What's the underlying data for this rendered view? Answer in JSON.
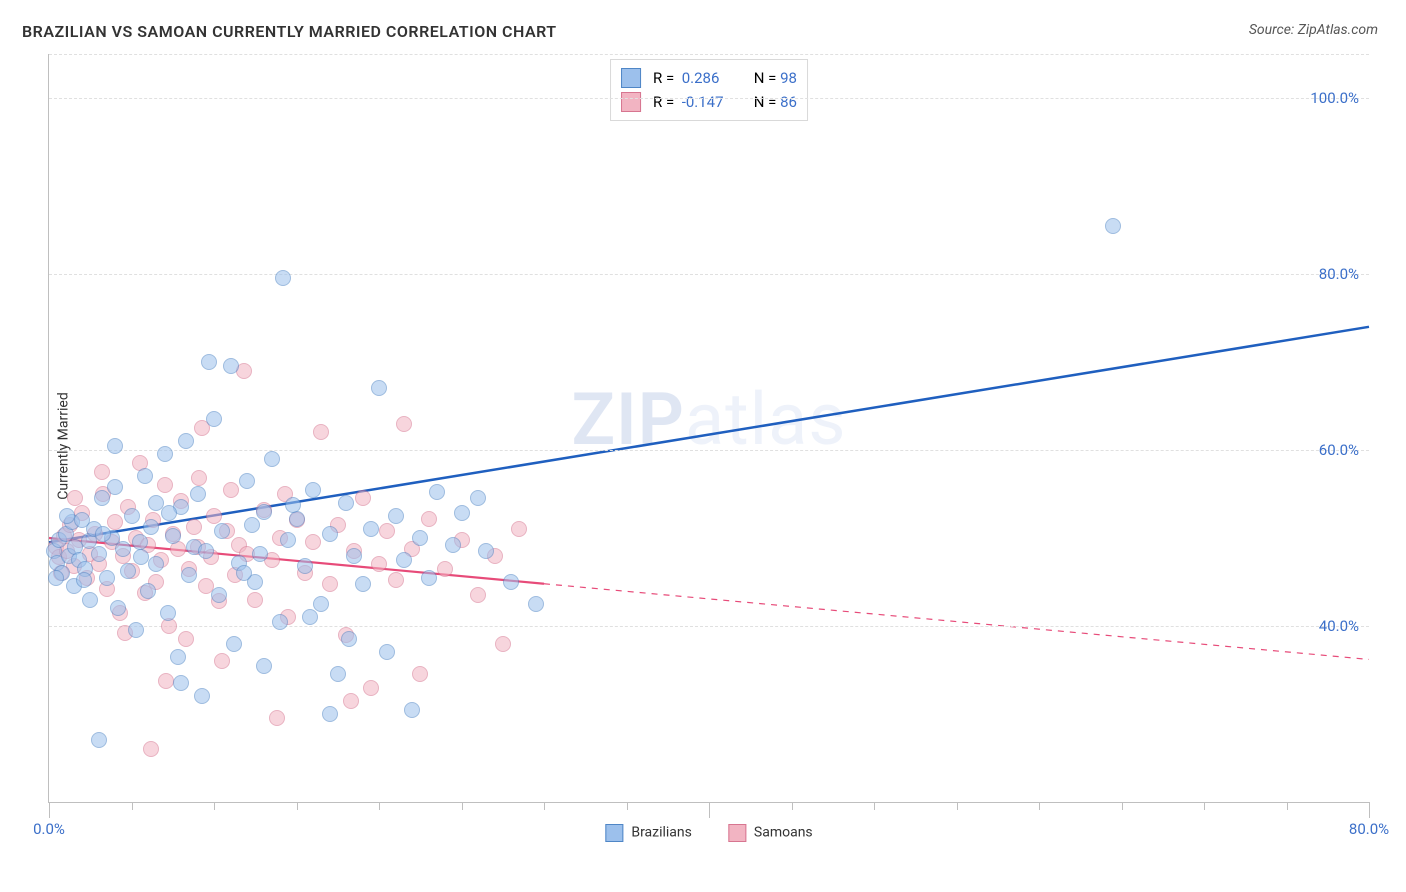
{
  "title": "BRAZILIAN VS SAMOAN CURRENTLY MARRIED CORRELATION CHART",
  "source": "Source: ZipAtlas.com",
  "y_axis_label": "Currently Married",
  "watermark_a": "ZIP",
  "watermark_b": "atlas",
  "chart": {
    "type": "scatter-with-trend",
    "x_range": [
      0,
      80
    ],
    "y_range": [
      20,
      105
    ],
    "background_color": "#ffffff",
    "grid_color": "#e0e0e0",
    "axis_color": "#bfbfbf",
    "tick_label_color": "#3b6fc9",
    "tick_fontsize": 15,
    "x_ticks_major": [
      0,
      40,
      80
    ],
    "x_ticks_minor": [
      5,
      10,
      15,
      20,
      25,
      30,
      35,
      45,
      50,
      55,
      60,
      65,
      70,
      75
    ],
    "x_tick_labels": {
      "0": "0.0%",
      "80": "80.0%"
    },
    "y_grid": [
      40,
      60,
      80,
      100
    ],
    "y_tick_labels": {
      "40": "40.0%",
      "60": "60.0%",
      "80": "80.0%",
      "100": "100.0%"
    },
    "point_radius": 7,
    "point_opacity": 0.55,
    "series": {
      "brazilians": {
        "label": "Brazilians",
        "fill": "#9cc0ec",
        "stroke": "#4f86c6",
        "r_label": "R =",
        "r_value": "0.286",
        "n_label": "N =",
        "n_value": "98",
        "trend": {
          "x1": 0,
          "y1": 49.5,
          "x2": 80,
          "y2": 74,
          "dash_from_x": 80,
          "stroke": "#1f5fbf",
          "width": 2.5
        },
        "points": [
          [
            0.3,
            48.5
          ],
          [
            0.5,
            47.2
          ],
          [
            0.6,
            49.8
          ],
          [
            0.8,
            46.0
          ],
          [
            1.0,
            50.5
          ],
          [
            1.2,
            48.0
          ],
          [
            1.4,
            51.8
          ],
          [
            1.5,
            44.5
          ],
          [
            1.6,
            49.0
          ],
          [
            1.8,
            47.5
          ],
          [
            2.0,
            52.0
          ],
          [
            2.2,
            46.5
          ],
          [
            2.4,
            49.7
          ],
          [
            2.5,
            43.0
          ],
          [
            2.7,
            51.0
          ],
          [
            3.0,
            48.2
          ],
          [
            3.2,
            54.5
          ],
          [
            3.5,
            45.5
          ],
          [
            3.8,
            50.0
          ],
          [
            4.0,
            55.8
          ],
          [
            4.2,
            42.0
          ],
          [
            4.5,
            48.8
          ],
          [
            4.8,
            46.2
          ],
          [
            5.0,
            52.5
          ],
          [
            5.3,
            39.5
          ],
          [
            5.5,
            49.5
          ],
          [
            5.8,
            57.0
          ],
          [
            6.0,
            44.0
          ],
          [
            6.2,
            51.2
          ],
          [
            6.5,
            47.0
          ],
          [
            7.0,
            59.5
          ],
          [
            7.2,
            41.5
          ],
          [
            7.5,
            50.2
          ],
          [
            7.8,
            36.5
          ],
          [
            8.0,
            53.5
          ],
          [
            8.3,
            61.0
          ],
          [
            8.5,
            45.8
          ],
          [
            8.8,
            49.0
          ],
          [
            9.0,
            55.0
          ],
          [
            9.3,
            32.0
          ],
          [
            9.5,
            48.5
          ],
          [
            10.0,
            63.5
          ],
          [
            10.3,
            43.5
          ],
          [
            10.5,
            50.8
          ],
          [
            11.0,
            69.5
          ],
          [
            11.2,
            38.0
          ],
          [
            11.5,
            47.2
          ],
          [
            12.0,
            56.5
          ],
          [
            12.3,
            51.5
          ],
          [
            12.5,
            45.0
          ],
          [
            13.0,
            53.0
          ],
          [
            13.5,
            59.0
          ],
          [
            14.0,
            40.5
          ],
          [
            14.5,
            49.8
          ],
          [
            15.0,
            52.2
          ],
          [
            15.5,
            46.8
          ],
          [
            16.0,
            55.5
          ],
          [
            16.5,
            42.5
          ],
          [
            17.0,
            50.5
          ],
          [
            17.5,
            34.5
          ],
          [
            18.0,
            54.0
          ],
          [
            18.5,
            48.0
          ],
          [
            19.0,
            44.8
          ],
          [
            19.5,
            51.0
          ],
          [
            14.2,
            79.5
          ],
          [
            20.0,
            67.0
          ],
          [
            20.5,
            37.0
          ],
          [
            21.0,
            52.5
          ],
          [
            21.5,
            47.5
          ],
          [
            22.0,
            30.5
          ],
          [
            22.5,
            50.0
          ],
          [
            23.0,
            45.5
          ],
          [
            23.5,
            55.2
          ],
          [
            3.0,
            27.0
          ],
          [
            24.5,
            49.2
          ],
          [
            25.0,
            52.8
          ],
          [
            8.0,
            33.5
          ],
          [
            26.5,
            48.5
          ],
          [
            28.0,
            45.0
          ],
          [
            29.5,
            42.5
          ],
          [
            64.5,
            85.5
          ],
          [
            17.0,
            30.0
          ],
          [
            13.0,
            35.5
          ],
          [
            6.5,
            54.0
          ],
          [
            4.0,
            60.5
          ],
          [
            9.7,
            70.0
          ],
          [
            11.8,
            46.0
          ],
          [
            15.8,
            41.0
          ],
          [
            18.2,
            38.5
          ],
          [
            7.3,
            52.8
          ],
          [
            5.6,
            47.8
          ],
          [
            3.3,
            50.5
          ],
          [
            2.1,
            45.2
          ],
          [
            1.1,
            52.5
          ],
          [
            0.4,
            45.5
          ],
          [
            12.8,
            48.2
          ],
          [
            14.8,
            53.8
          ],
          [
            26.0,
            54.5
          ]
        ]
      },
      "samoans": {
        "label": "Samoans",
        "fill": "#f2b4c2",
        "stroke": "#d77590",
        "r_label": "R =",
        "r_value": "-0.147",
        "n_label": "N =",
        "n_value": "86",
        "trend": {
          "x1": 0,
          "y1": 50.0,
          "x2": 30,
          "y2": 44.8,
          "extend_x": 80,
          "extend_y": 36.2,
          "stroke": "#e74b79",
          "width": 2.2
        },
        "points": [
          [
            0.4,
            49.0
          ],
          [
            0.6,
            47.8
          ],
          [
            0.9,
            50.2
          ],
          [
            1.1,
            48.5
          ],
          [
            1.3,
            51.5
          ],
          [
            1.5,
            46.8
          ],
          [
            1.8,
            49.8
          ],
          [
            2.0,
            52.8
          ],
          [
            2.3,
            45.5
          ],
          [
            2.5,
            48.2
          ],
          [
            2.8,
            50.5
          ],
          [
            3.0,
            47.0
          ],
          [
            3.3,
            55.0
          ],
          [
            3.5,
            44.2
          ],
          [
            3.8,
            49.5
          ],
          [
            4.0,
            51.8
          ],
          [
            4.3,
            41.5
          ],
          [
            4.5,
            48.0
          ],
          [
            4.8,
            53.5
          ],
          [
            5.0,
            46.2
          ],
          [
            5.3,
            50.0
          ],
          [
            5.5,
            58.5
          ],
          [
            5.8,
            43.8
          ],
          [
            6.0,
            49.2
          ],
          [
            6.3,
            52.0
          ],
          [
            6.5,
            45.0
          ],
          [
            6.8,
            47.5
          ],
          [
            7.0,
            56.0
          ],
          [
            7.3,
            40.0
          ],
          [
            7.5,
            50.5
          ],
          [
            7.8,
            48.8
          ],
          [
            8.0,
            54.2
          ],
          [
            8.3,
            38.5
          ],
          [
            8.5,
            46.5
          ],
          [
            8.8,
            51.2
          ],
          [
            9.0,
            49.0
          ],
          [
            9.3,
            62.5
          ],
          [
            9.5,
            44.5
          ],
          [
            9.8,
            47.8
          ],
          [
            10.0,
            52.5
          ],
          [
            10.3,
            42.8
          ],
          [
            10.5,
            36.0
          ],
          [
            10.8,
            50.8
          ],
          [
            11.0,
            55.5
          ],
          [
            11.3,
            45.8
          ],
          [
            11.5,
            49.2
          ],
          [
            11.8,
            69.0
          ],
          [
            12.0,
            48.2
          ],
          [
            12.5,
            43.0
          ],
          [
            13.0,
            53.2
          ],
          [
            13.5,
            47.5
          ],
          [
            14.0,
            50.0
          ],
          [
            14.5,
            41.0
          ],
          [
            15.0,
            52.0
          ],
          [
            15.5,
            46.0
          ],
          [
            16.0,
            49.5
          ],
          [
            16.5,
            62.0
          ],
          [
            17.0,
            44.8
          ],
          [
            17.5,
            51.5
          ],
          [
            18.0,
            39.0
          ],
          [
            18.5,
            48.5
          ],
          [
            19.0,
            54.5
          ],
          [
            19.5,
            33.0
          ],
          [
            20.0,
            47.0
          ],
          [
            20.5,
            50.8
          ],
          [
            21.0,
            45.2
          ],
          [
            21.5,
            63.0
          ],
          [
            22.0,
            48.8
          ],
          [
            22.5,
            34.5
          ],
          [
            23.0,
            52.2
          ],
          [
            24.0,
            46.5
          ],
          [
            25.0,
            49.8
          ],
          [
            26.0,
            43.5
          ],
          [
            27.0,
            48.0
          ],
          [
            27.5,
            38.0
          ],
          [
            28.5,
            51.0
          ],
          [
            6.2,
            26.0
          ],
          [
            13.8,
            29.5
          ],
          [
            18.3,
            31.5
          ],
          [
            3.2,
            57.5
          ],
          [
            1.6,
            54.5
          ],
          [
            0.7,
            46.0
          ],
          [
            4.6,
            39.2
          ],
          [
            7.1,
            33.8
          ],
          [
            9.1,
            56.8
          ],
          [
            14.3,
            55.0
          ]
        ]
      }
    }
  }
}
